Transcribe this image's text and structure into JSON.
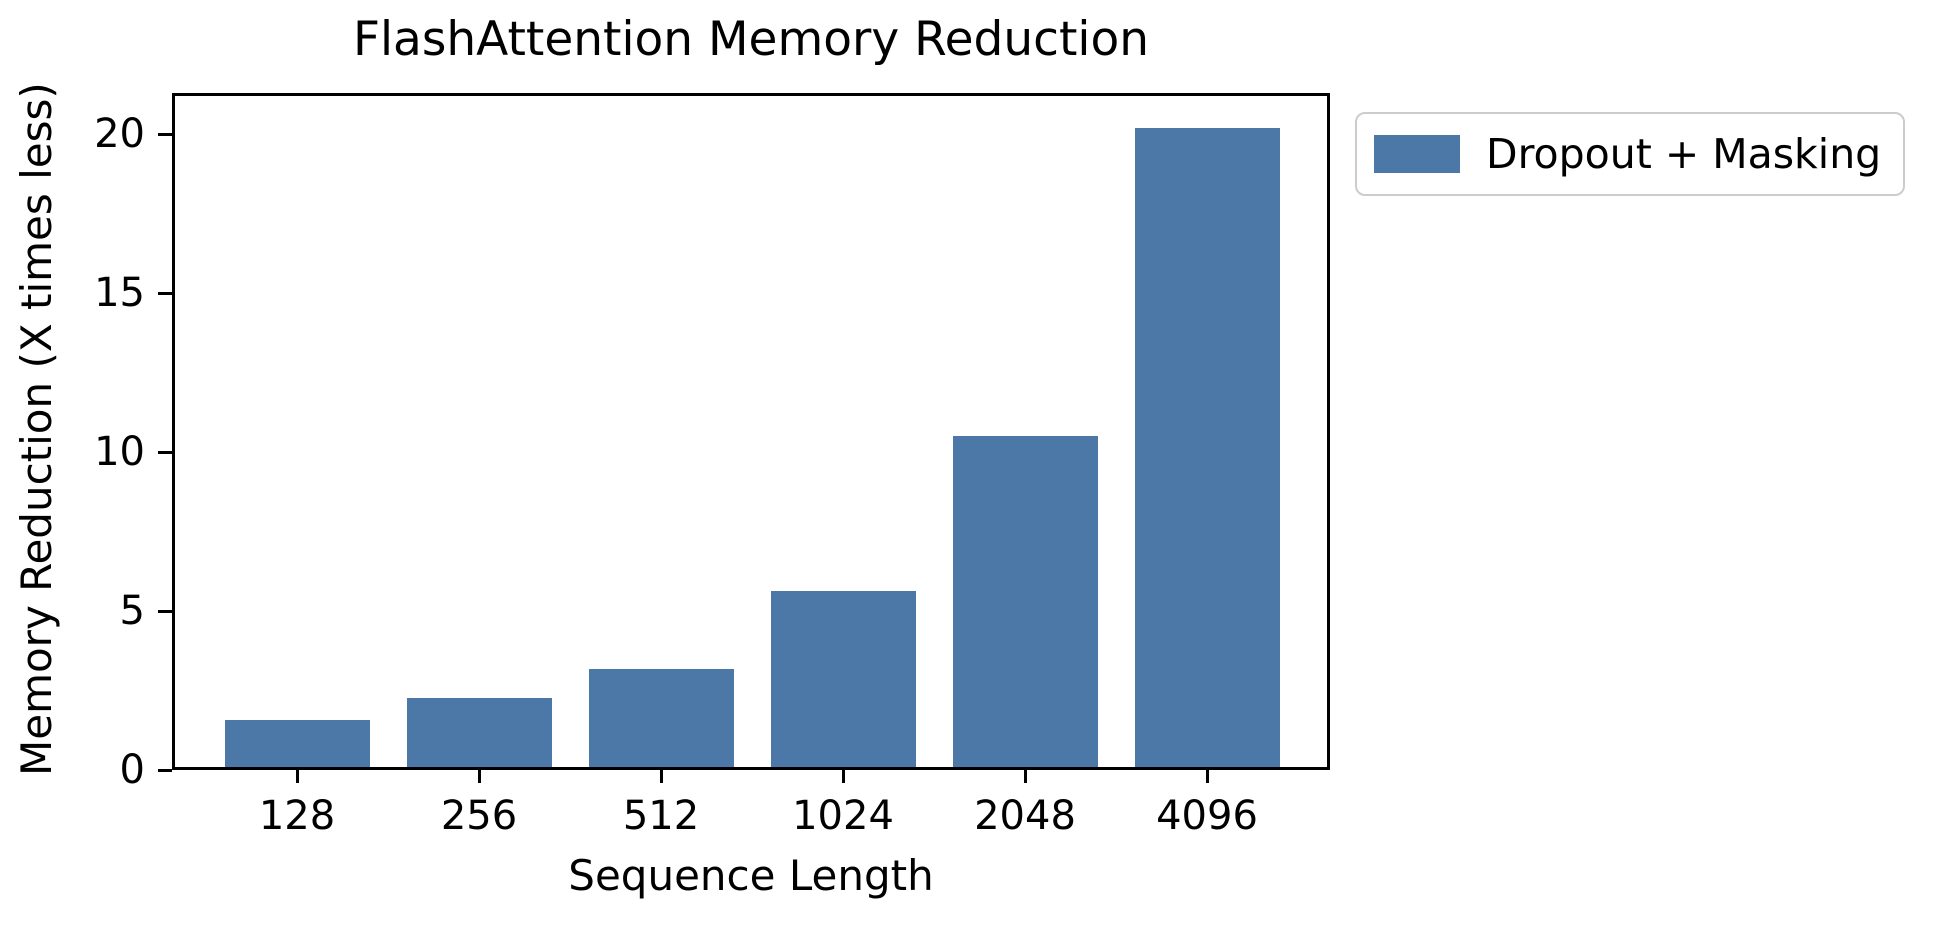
{
  "chart_data": {
    "type": "bar",
    "title": "FlashAttention Memory Reduction",
    "xlabel": "Sequence Length",
    "ylabel": "Memory Reduction (X times less)",
    "categories": [
      "128",
      "256",
      "512",
      "1024",
      "2048",
      "4096"
    ],
    "series": [
      {
        "name": "Dropout + Masking",
        "color": "#4C78A8",
        "values": [
          1.5,
          2.2,
          3.1,
          5.6,
          10.5,
          20.3
        ]
      }
    ],
    "yticks": [
      0,
      5,
      10,
      15,
      20
    ],
    "ylim": [
      0,
      21.3
    ],
    "grid": false,
    "legend_position": "outside-top-right",
    "colors": {
      "bar": "#4C78A8",
      "spine": "#000000",
      "text": "#000000",
      "legend_border": "#cccccc",
      "background": "#ffffff"
    }
  }
}
